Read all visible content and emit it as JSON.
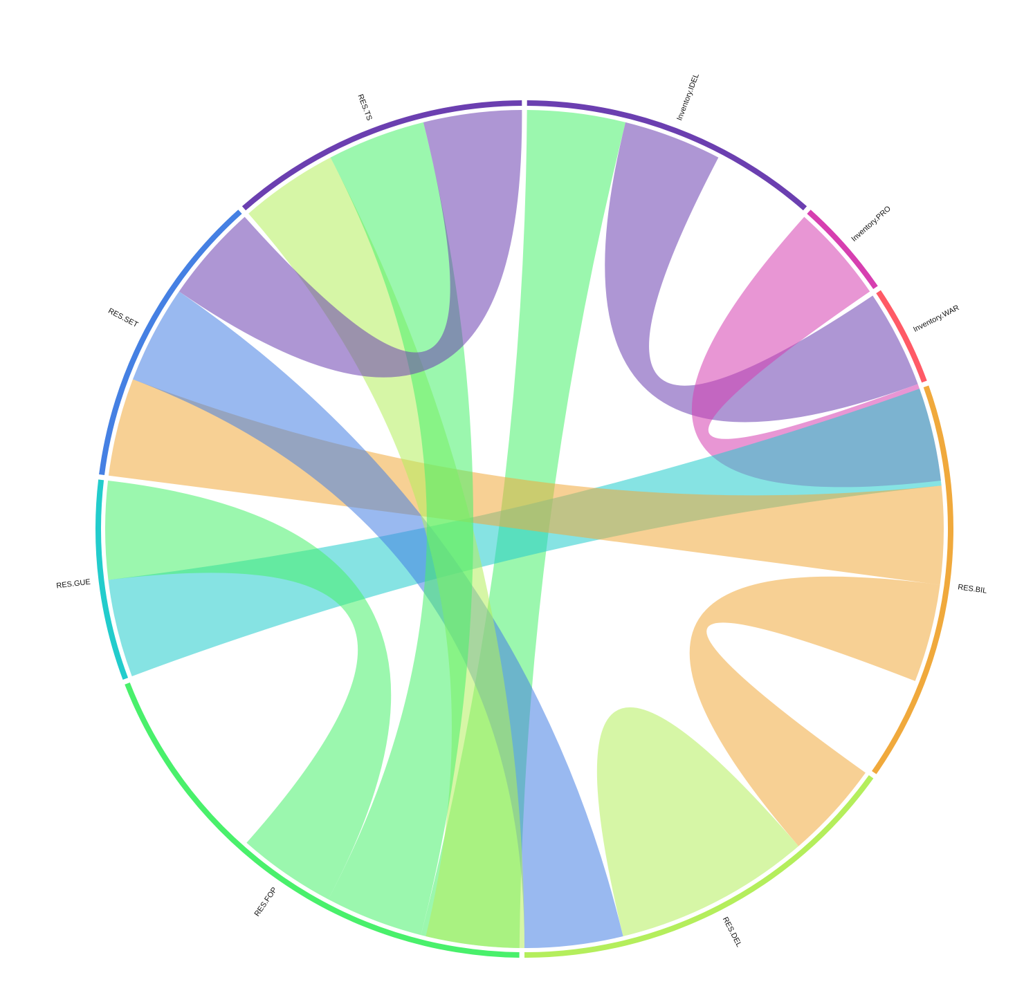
{
  "chart_data": {
    "type": "chord",
    "title": "",
    "nodes": [
      {
        "name": "Inventory.IDEL",
        "color": "#6b3fb0",
        "units": 3
      },
      {
        "name": "Inventory.PRO",
        "color": "#d63fb0",
        "units": 1
      },
      {
        "name": "Inventory.WAR",
        "color": "#ff5a66",
        "units": 1
      },
      {
        "name": "RES.BIL",
        "color": "#f0a93c",
        "units": 4
      },
      {
        "name": "RES.DEL",
        "color": "#b4ee5c",
        "units": 4
      },
      {
        "name": "RES.FOP",
        "color": "#49f06b",
        "units": 5
      },
      {
        "name": "RES.GUE",
        "color": "#22cccc",
        "units": 2
      },
      {
        "name": "RES.SET",
        "color": "#4580e3",
        "units": 3
      },
      {
        "name": "RES.TS",
        "color": "#6b3fb0",
        "units": 3
      }
    ],
    "links": [
      {
        "source": "Inventory.IDEL",
        "target": "RES.FOP",
        "value": 1,
        "color": "#49f06b"
      },
      {
        "source": "Inventory.IDEL",
        "target": "Inventory.WAR",
        "value": 1,
        "color": "#6b3fb0"
      },
      {
        "source": "Inventory.PRO",
        "target": "Inventory.WAR",
        "value": 1,
        "color": "#d63fb0"
      },
      {
        "source": "RES.BIL",
        "target": "RES.GUE",
        "value": 1,
        "color": "#22cccc"
      },
      {
        "source": "RES.BIL",
        "target": "RES.SET",
        "value": 1,
        "color": "#f0a93c"
      },
      {
        "source": "RES.BIL",
        "target": "RES.DEL",
        "value": 1,
        "color": "#f0a93c"
      },
      {
        "source": "RES.DEL",
        "target": "RES.DEL",
        "value": 1,
        "color": "#b4ee5c"
      },
      {
        "source": "RES.DEL",
        "target": "RES.SET",
        "value": 1,
        "color": "#4580e3"
      },
      {
        "source": "RES.DEL",
        "target": "RES.TS",
        "value": 1,
        "color": "#b4ee5c"
      },
      {
        "source": "RES.FOP",
        "target": "RES.TS",
        "value": 1,
        "color": "#49f06b"
      },
      {
        "source": "RES.FOP",
        "target": "RES.GUE",
        "value": 1,
        "color": "#49f06b"
      },
      {
        "source": "RES.SET",
        "target": "RES.TS",
        "value": 1,
        "color": "#6b3fb0"
      }
    ]
  }
}
